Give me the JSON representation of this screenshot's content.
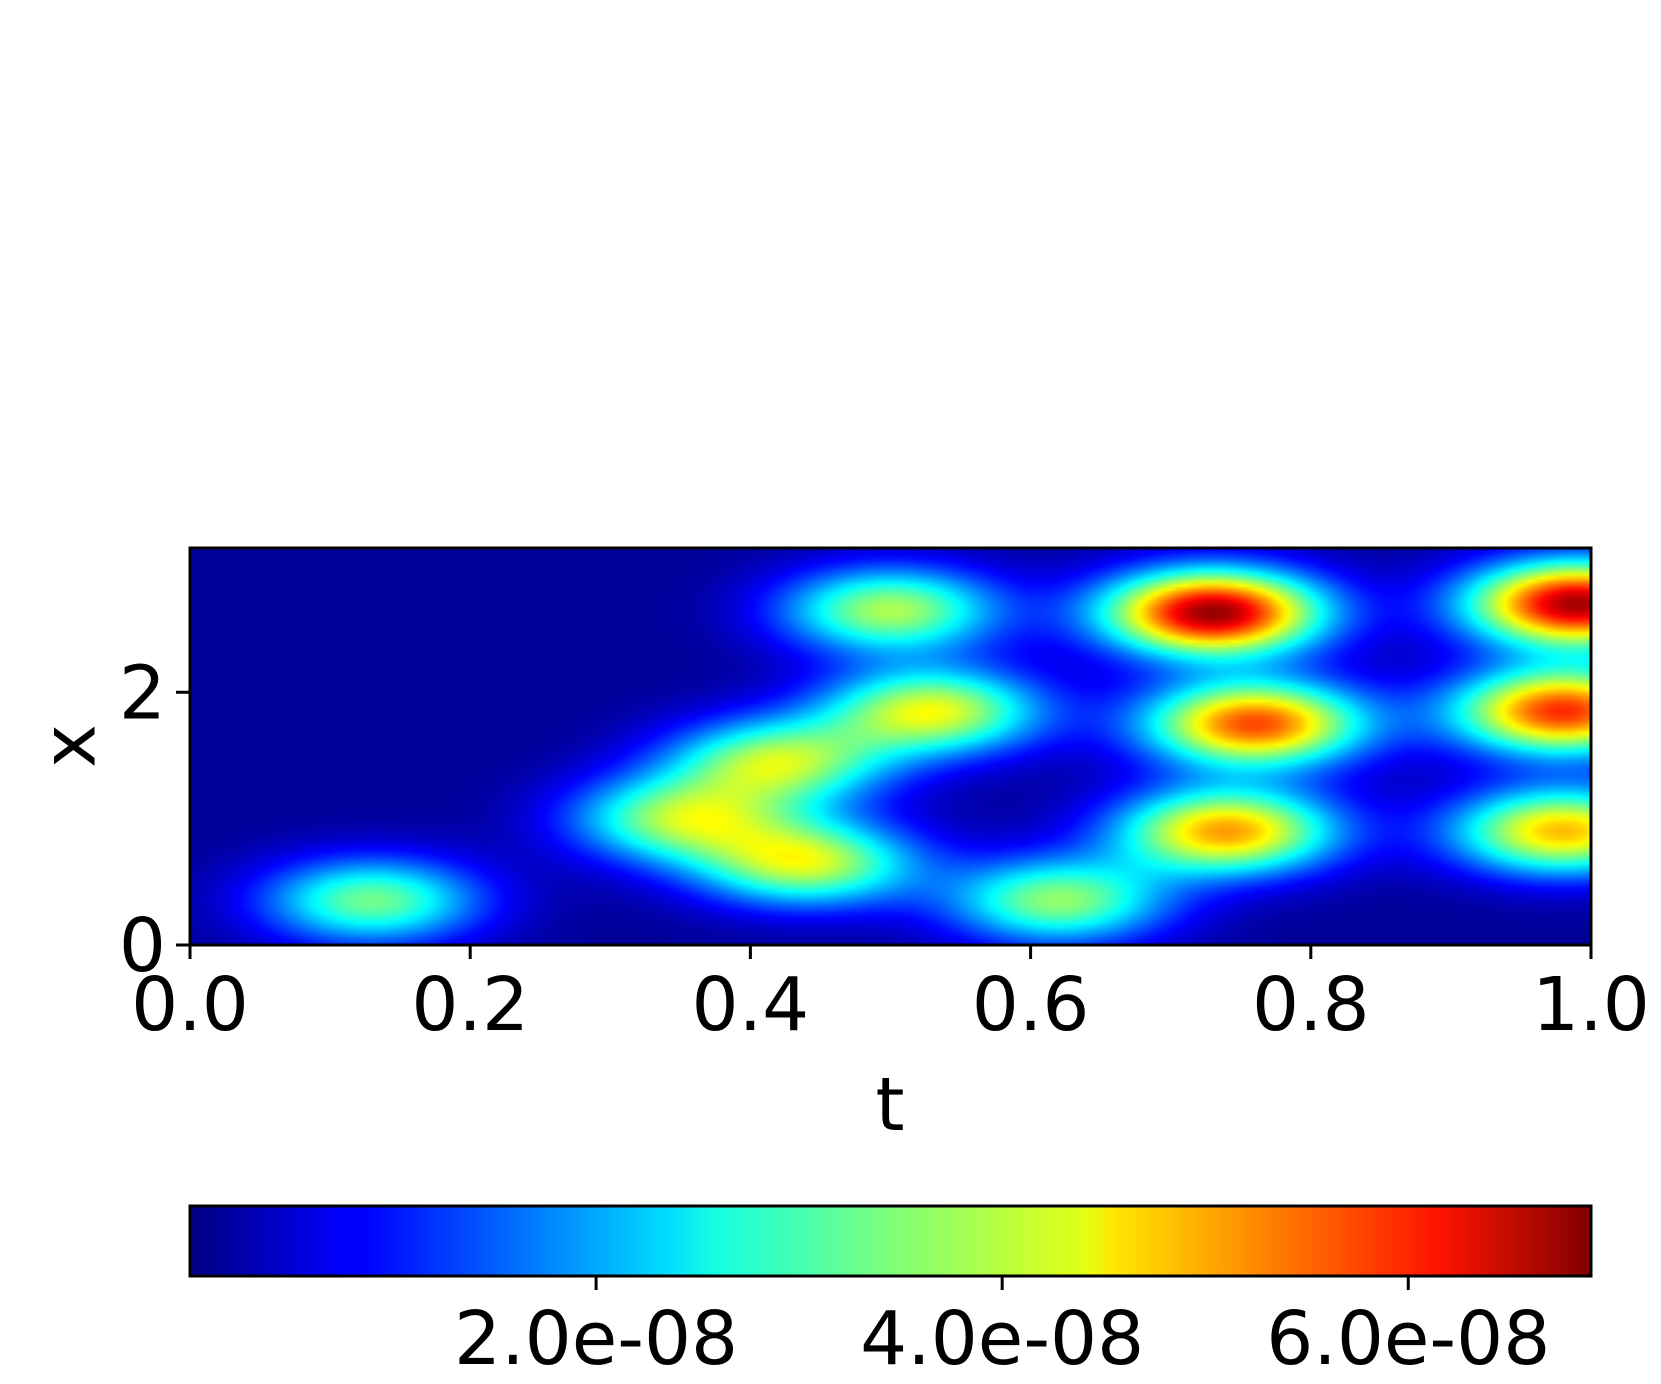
{
  "chart_data": {
    "type": "heatmap",
    "title": "",
    "xlabel": "t",
    "ylabel": "x",
    "xlim": [
      0.0,
      1.0
    ],
    "ylim": [
      0,
      3.14159
    ],
    "x_ticks": [
      "0.0",
      "0.2",
      "0.4",
      "0.6",
      "0.8",
      "1.0"
    ],
    "x_tick_values": [
      0.0,
      0.2,
      0.4,
      0.6,
      0.8,
      1.0
    ],
    "y_ticks": [
      "0",
      "2"
    ],
    "y_tick_values": [
      0,
      2
    ],
    "colormap": "jet",
    "colorbar": {
      "orientation": "horizontal",
      "placement": "below",
      "range": [
        0.0,
        6.9e-08
      ],
      "ticks": [
        "2.0e-08",
        "4.0e-08",
        "6.0e-08"
      ],
      "tick_values": [
        2e-08,
        4e-08,
        6e-08
      ]
    },
    "grid": false,
    "peaks": [
      {
        "t": 0.13,
        "x": 0.35,
        "value": 3.2e-08
      },
      {
        "t": 0.35,
        "x": 1.0,
        "value": 3.4e-08
      },
      {
        "t": 0.5,
        "x": 2.65,
        "value": 3.6e-08
      },
      {
        "t": 0.53,
        "x": 1.85,
        "value": 4e-08
      },
      {
        "t": 0.44,
        "x": 0.65,
        "value": 3.8e-08
      },
      {
        "t": 0.42,
        "x": 1.45,
        "value": 3.6e-08
      },
      {
        "t": 0.73,
        "x": 2.63,
        "value": 6.6e-08
      },
      {
        "t": 0.76,
        "x": 1.75,
        "value": 5.4e-08
      },
      {
        "t": 0.74,
        "x": 0.9,
        "value": 4.8e-08
      },
      {
        "t": 0.62,
        "x": 0.35,
        "value": 3.4e-08
      },
      {
        "t": 0.99,
        "x": 2.7,
        "value": 6.5e-08
      },
      {
        "t": 0.98,
        "x": 1.85,
        "value": 5.6e-08
      },
      {
        "t": 0.98,
        "x": 0.9,
        "value": 4.6e-08
      }
    ]
  }
}
